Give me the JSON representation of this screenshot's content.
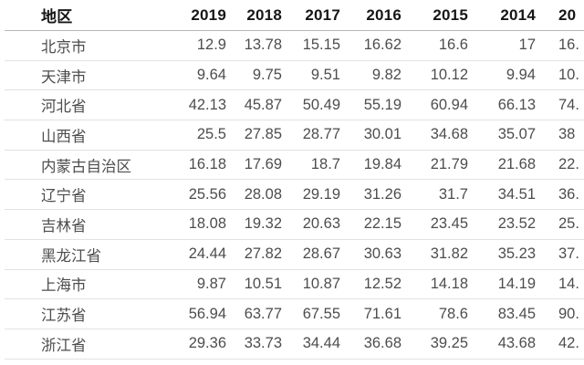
{
  "chart_data": {
    "type": "table",
    "title": "",
    "columns": [
      "地区",
      "2019",
      "2018",
      "2017",
      "2016",
      "2015",
      "2014",
      "20"
    ],
    "note_last_column_clipped": "true",
    "rows": [
      {
        "region": "北京市",
        "values": [
          "12.9",
          "13.78",
          "15.15",
          "16.62",
          "16.6",
          "17",
          "16."
        ]
      },
      {
        "region": "天津市",
        "values": [
          "9.64",
          "9.75",
          "9.51",
          "9.82",
          "10.12",
          "9.94",
          "10."
        ]
      },
      {
        "region": "河北省",
        "values": [
          "42.13",
          "45.87",
          "50.49",
          "55.19",
          "60.94",
          "66.13",
          "74."
        ]
      },
      {
        "region": "山西省",
        "values": [
          "25.5",
          "27.85",
          "28.77",
          "30.01",
          "34.68",
          "35.07",
          "38"
        ]
      },
      {
        "region": "内蒙古自治区",
        "values": [
          "16.18",
          "17.69",
          "18.7",
          "19.84",
          "21.79",
          "21.68",
          "22."
        ]
      },
      {
        "region": "辽宁省",
        "values": [
          "25.56",
          "28.08",
          "29.19",
          "31.26",
          "31.7",
          "34.51",
          "36."
        ]
      },
      {
        "region": "吉林省",
        "values": [
          "18.08",
          "19.32",
          "20.63",
          "22.15",
          "23.45",
          "23.52",
          "25."
        ]
      },
      {
        "region": "黑龙江省",
        "values": [
          "24.44",
          "27.82",
          "28.67",
          "30.63",
          "31.82",
          "35.23",
          "37."
        ]
      },
      {
        "region": "上海市",
        "values": [
          "9.87",
          "10.51",
          "10.87",
          "12.52",
          "14.18",
          "14.19",
          "14."
        ]
      },
      {
        "region": "江苏省",
        "values": [
          "56.94",
          "63.77",
          "67.55",
          "71.61",
          "78.6",
          "83.45",
          "90."
        ]
      },
      {
        "region": "浙江省",
        "values": [
          "29.36",
          "33.73",
          "34.44",
          "36.68",
          "39.25",
          "43.68",
          "42."
        ]
      }
    ]
  },
  "colors": {
    "header_text": "#161616",
    "body_text": "#4d4d4d",
    "header_rule": "#b7b7b7",
    "row_rule": "#e2e2e2",
    "background": "#ffffff"
  }
}
